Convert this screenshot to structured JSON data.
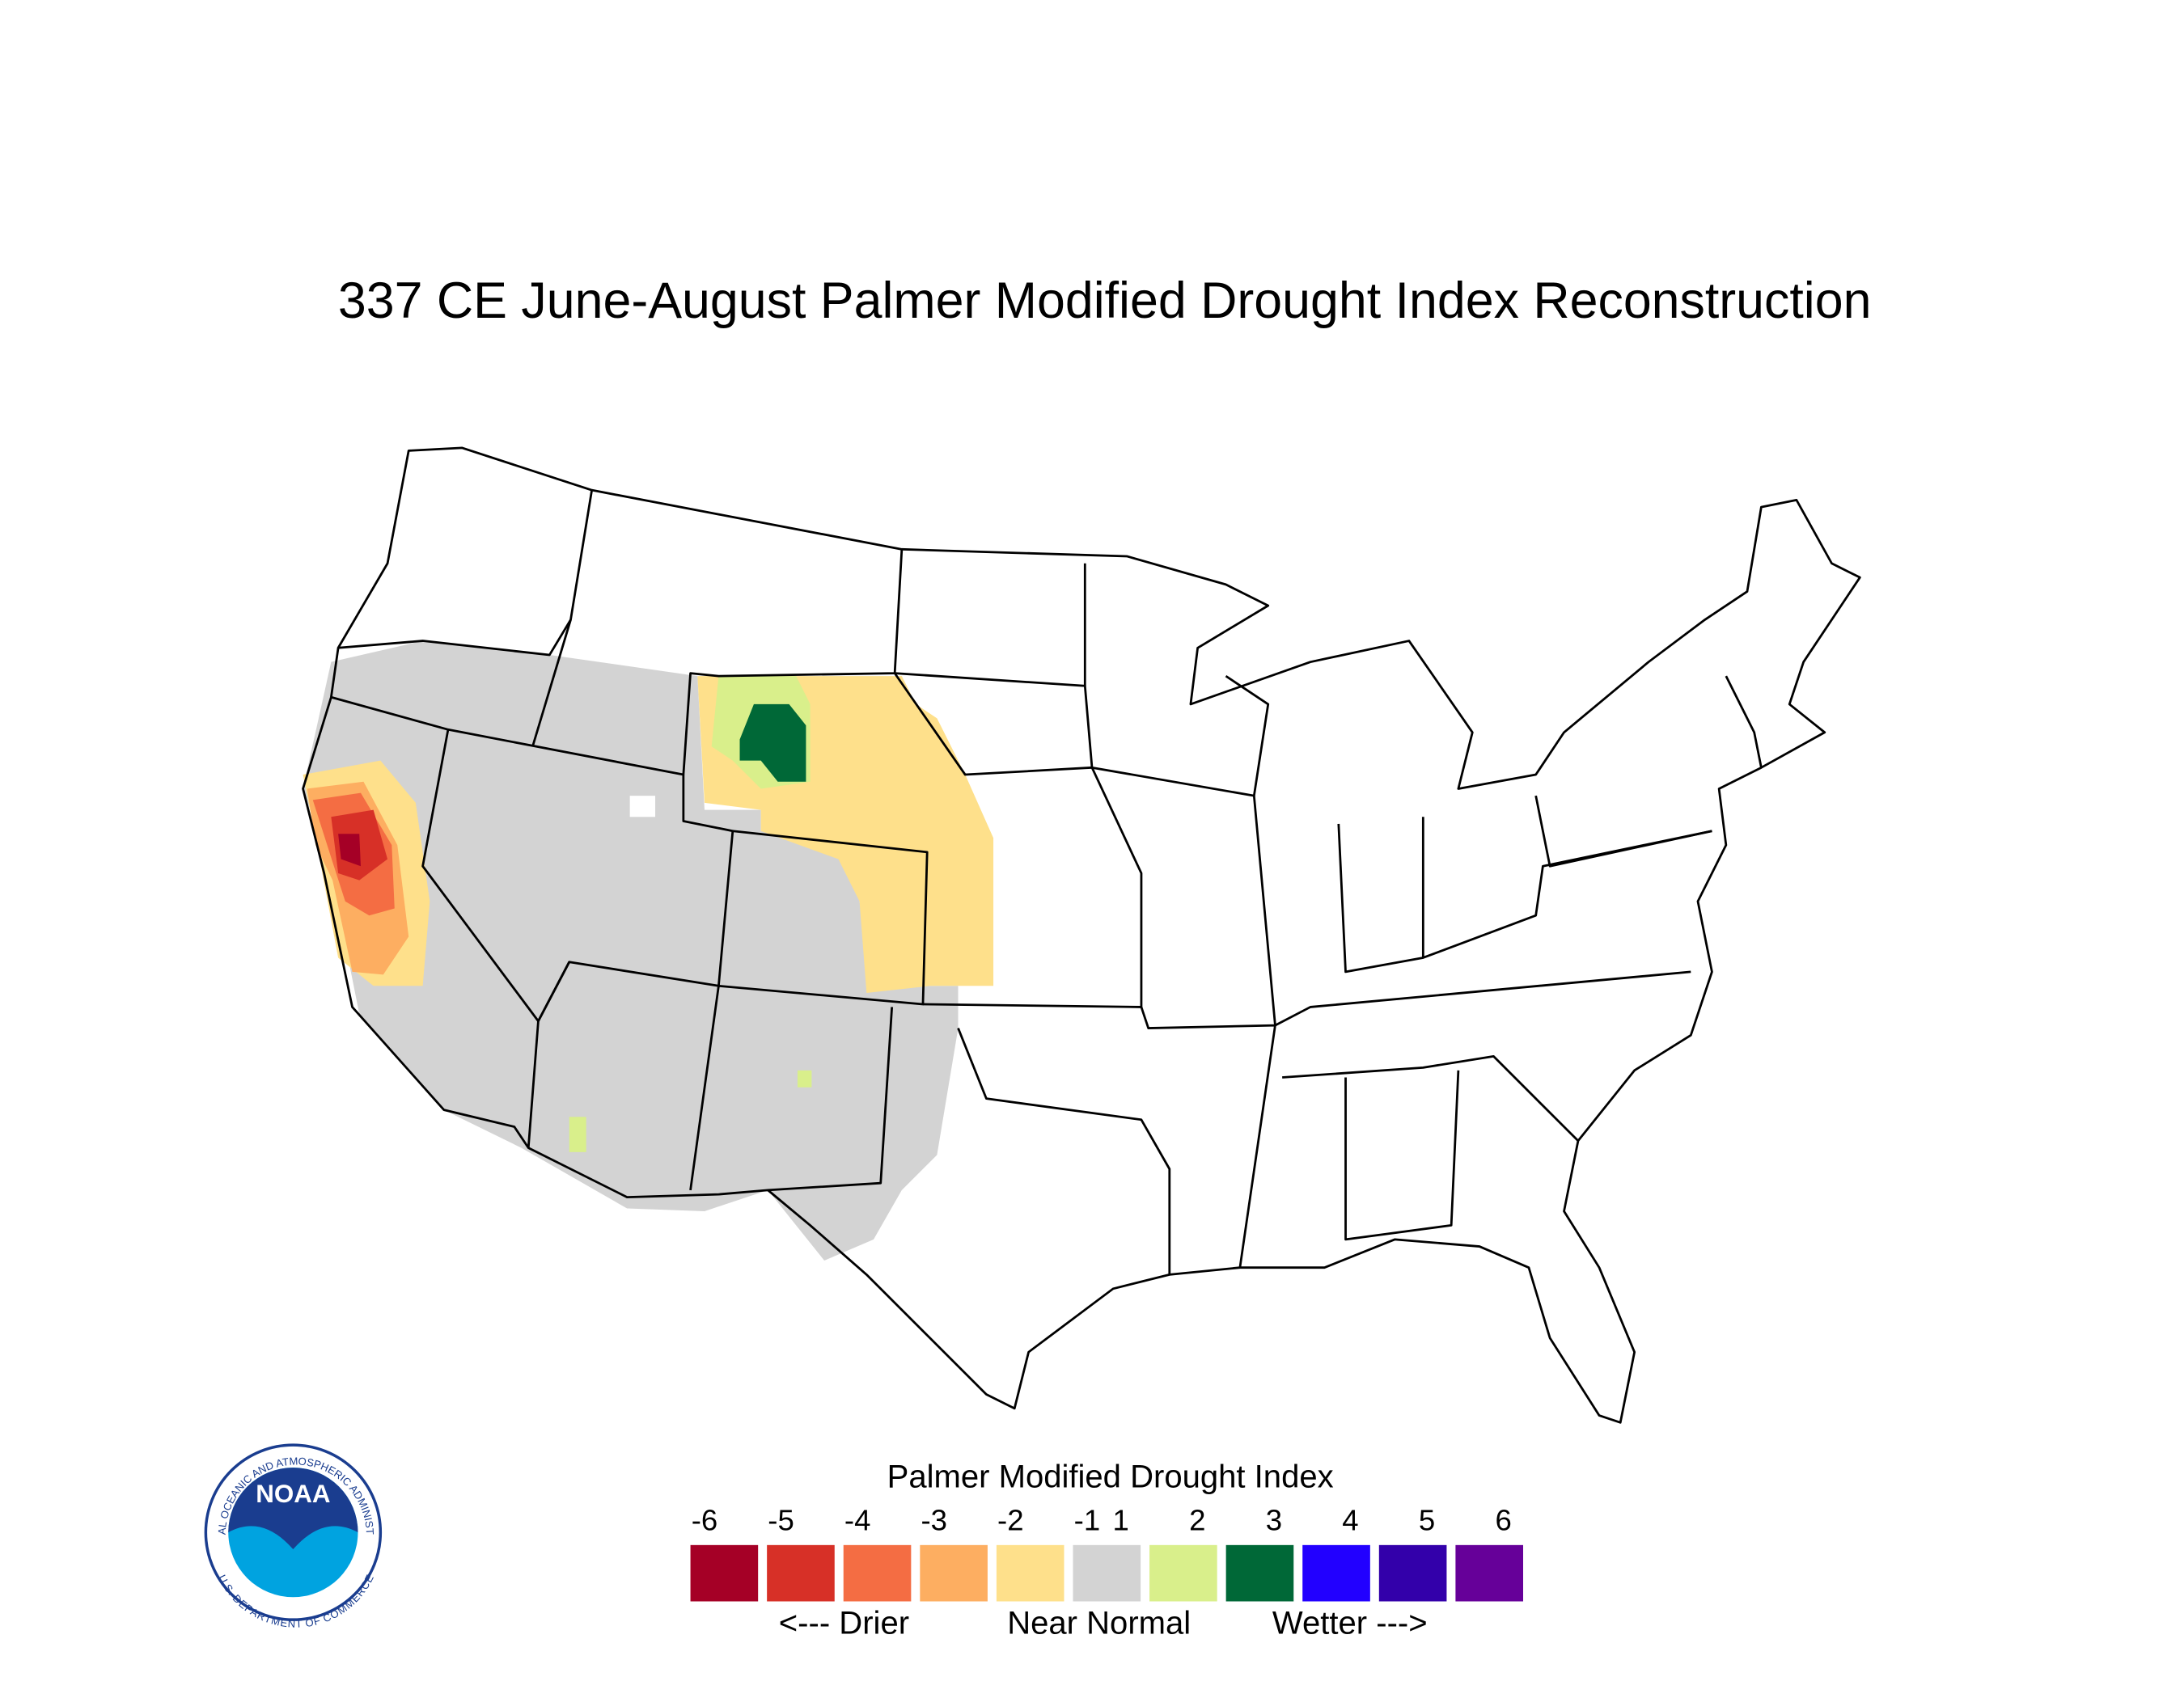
{
  "title": "337 CE  June-August  Palmer Modified Drought Index Reconstruction",
  "legend": {
    "title": "Palmer Modified Drought Index",
    "ticks": [
      -6,
      -5,
      -4,
      -3,
      -2,
      -1,
      1,
      2,
      3,
      4,
      5,
      6
    ],
    "colors": [
      "#a50026",
      "#d73027",
      "#f46d43",
      "#fdae61",
      "#fee08b",
      "#d3d3d3",
      "#d9ef8b",
      "#006837",
      "#2200ff",
      "#3300aa",
      "#660099"
    ],
    "descriptors": [
      "<--- Drier",
      "Near Normal",
      "Wetter --->"
    ]
  },
  "logo": {
    "text": "NOAA",
    "top_text": "NATIONAL OCEANIC AND ATMOSPHERIC ADMINISTRATION",
    "bottom_text": "U.S. DEPARTMENT OF COMMERCE"
  }
}
